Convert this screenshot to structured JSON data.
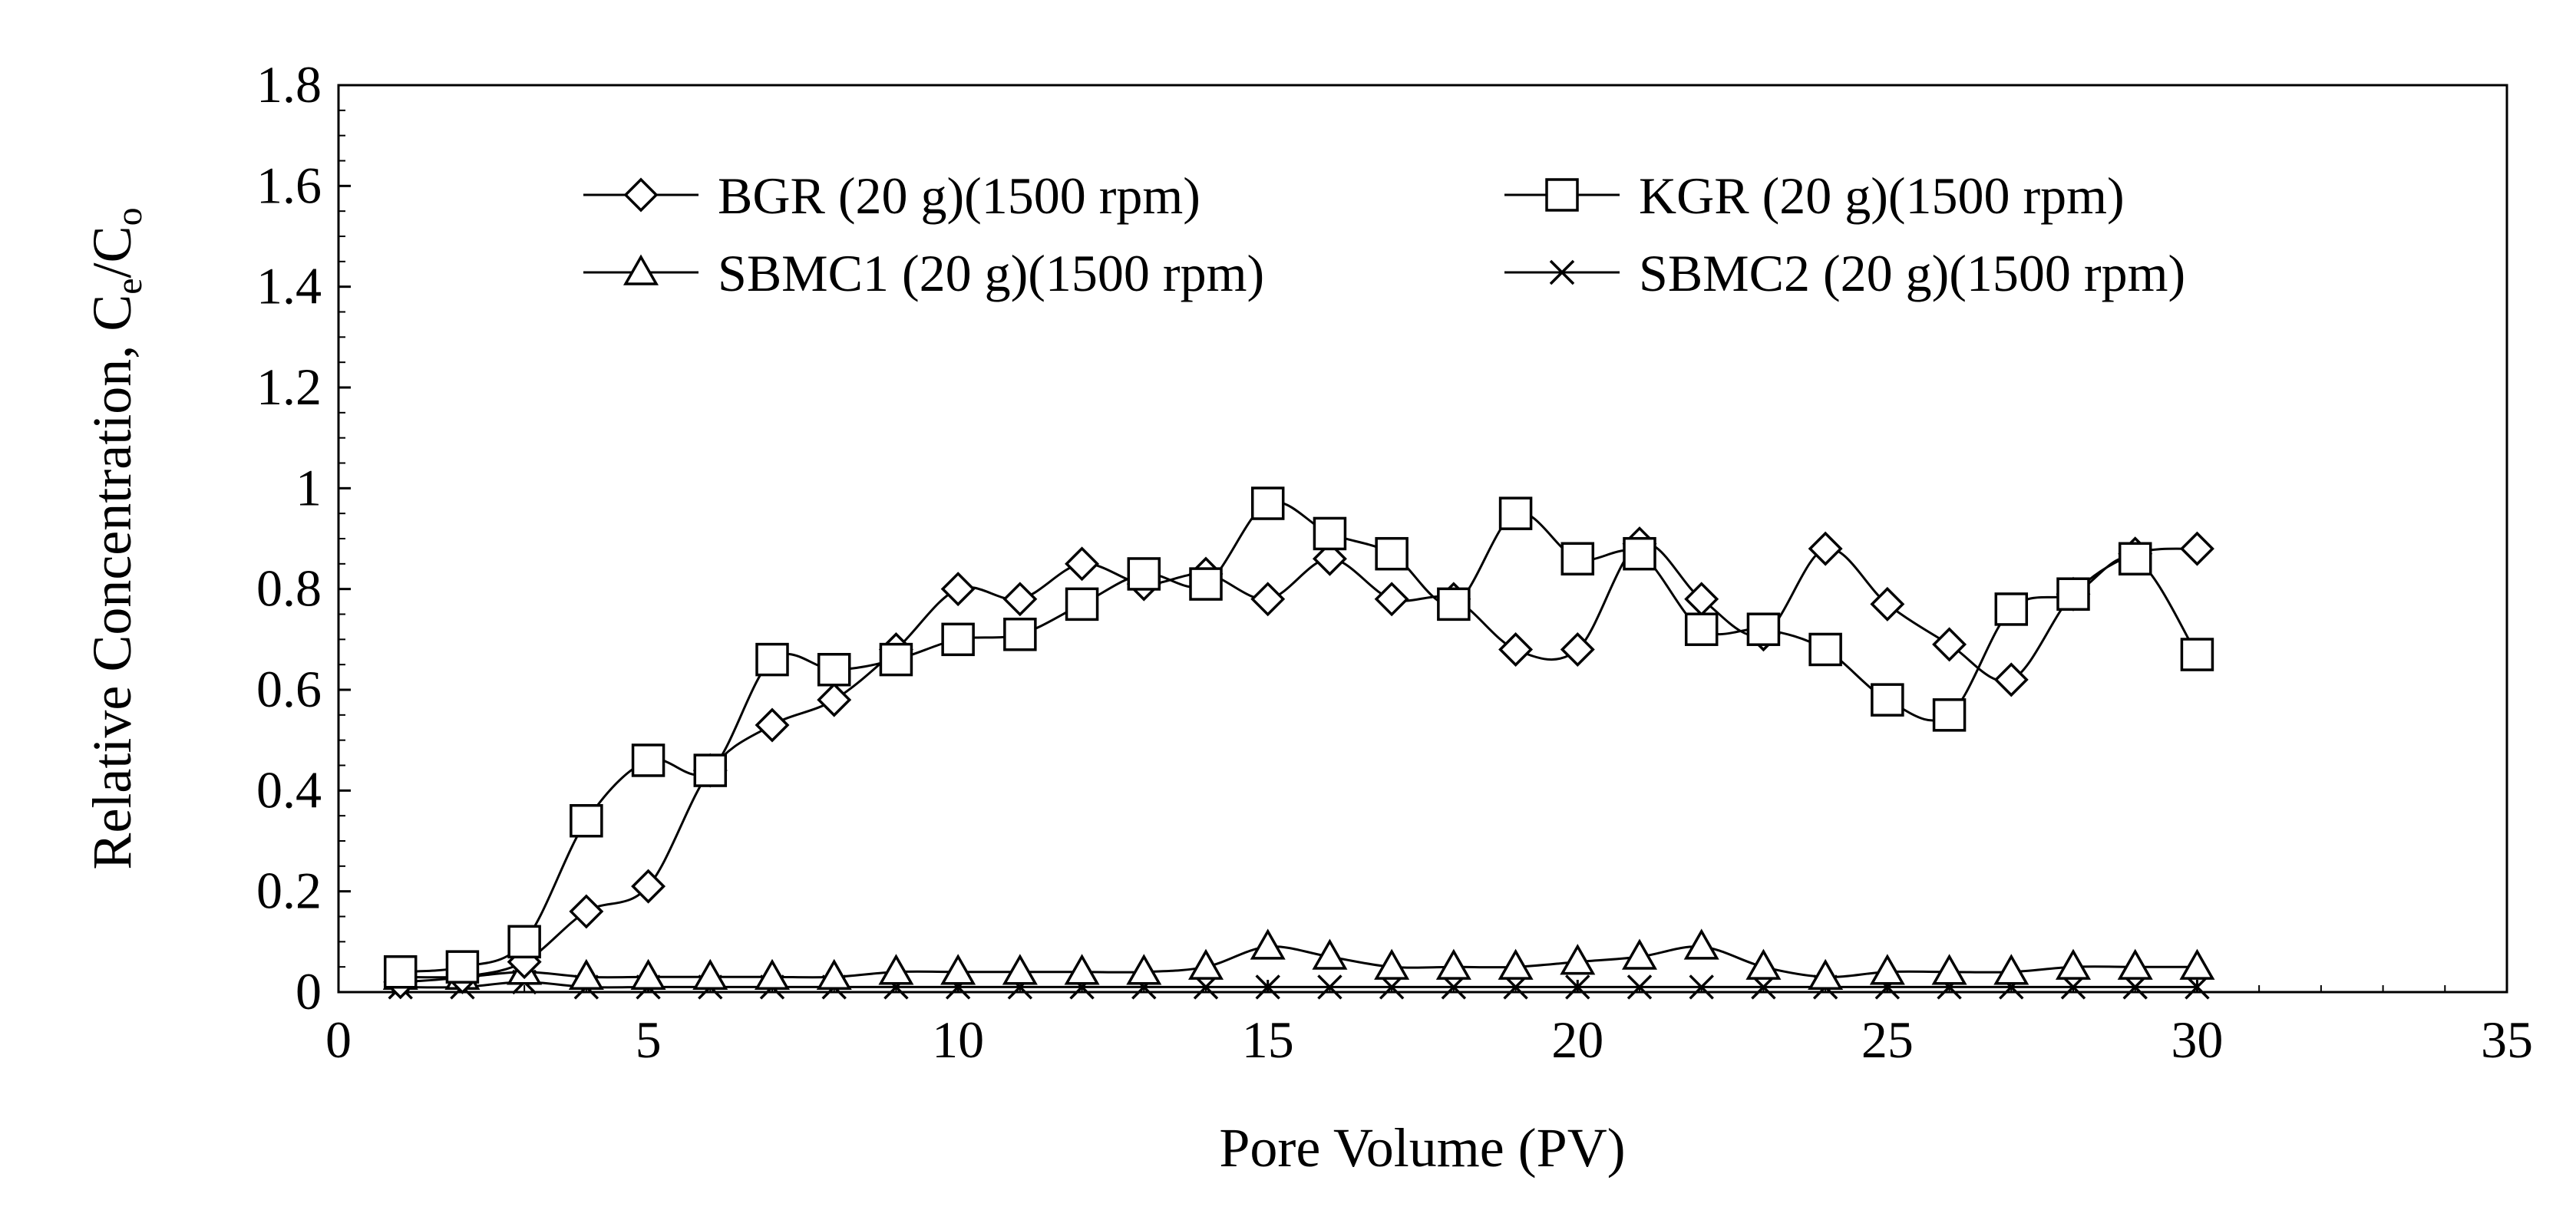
{
  "chart_data": {
    "type": "line",
    "title": "",
    "xlabel": "Pore Volume (PV)",
    "ylabel_main": "Relative Concentration, C",
    "ylabel_sub1": "e",
    "ylabel_slash": "/C",
    "ylabel_sub2": "o",
    "xlim": [
      0,
      35
    ],
    "ylim": [
      0,
      1.8
    ],
    "xticks": [
      "0",
      "5",
      "10",
      "15",
      "20",
      "25",
      "30",
      "35"
    ],
    "yticks": [
      "0",
      "0.2",
      "0.4",
      "0.6",
      "0.8",
      "1",
      "1.2",
      "1.4",
      "1.6",
      "1.8"
    ],
    "x": [
      1,
      2,
      3,
      4,
      5,
      6,
      7,
      8,
      9,
      10,
      11,
      12,
      13,
      14,
      15,
      16,
      17,
      18,
      19,
      20,
      21,
      22,
      23,
      24,
      25,
      26,
      27,
      28,
      29,
      30
    ],
    "series": [
      {
        "name": "BGR (20 g)(1500 rpm)",
        "marker": "diamond",
        "values": [
          0.02,
          0.03,
          0.06,
          0.16,
          0.21,
          0.44,
          0.53,
          0.58,
          0.68,
          0.8,
          0.78,
          0.85,
          0.81,
          0.83,
          0.78,
          0.86,
          0.78,
          0.78,
          0.68,
          0.68,
          0.89,
          0.78,
          0.71,
          0.88,
          0.77,
          0.69,
          0.62,
          0.79,
          0.87,
          0.88
        ]
      },
      {
        "name": "KGR (20 g)(1500 rpm)",
        "marker": "square",
        "values": [
          0.04,
          0.05,
          0.1,
          0.34,
          0.46,
          0.44,
          0.66,
          0.64,
          0.66,
          0.7,
          0.71,
          0.77,
          0.83,
          0.81,
          0.97,
          0.91,
          0.87,
          0.77,
          0.95,
          0.86,
          0.87,
          0.72,
          0.72,
          0.68,
          0.58,
          0.55,
          0.76,
          0.79,
          0.86,
          0.67
        ]
      },
      {
        "name": "SBMC1 (20 g)(1500 rpm)",
        "marker": "triangle",
        "values": [
          0.03,
          0.03,
          0.04,
          0.03,
          0.03,
          0.03,
          0.03,
          0.03,
          0.04,
          0.04,
          0.04,
          0.04,
          0.04,
          0.05,
          0.09,
          0.07,
          0.05,
          0.05,
          0.05,
          0.06,
          0.07,
          0.09,
          0.05,
          0.03,
          0.04,
          0.04,
          0.04,
          0.05,
          0.05,
          0.05
        ]
      },
      {
        "name": "SBMC2 (20 g)(1500 rpm)",
        "marker": "x",
        "values": [
          0.01,
          0.01,
          0.02,
          0.01,
          0.01,
          0.01,
          0.01,
          0.01,
          0.01,
          0.01,
          0.01,
          0.01,
          0.01,
          0.01,
          0.01,
          0.01,
          0.01,
          0.01,
          0.01,
          0.01,
          0.01,
          0.01,
          0.01,
          0.01,
          0.01,
          0.01,
          0.01,
          0.01,
          0.01,
          0.01
        ]
      }
    ],
    "legend_position": "top-center",
    "grid": false
  }
}
